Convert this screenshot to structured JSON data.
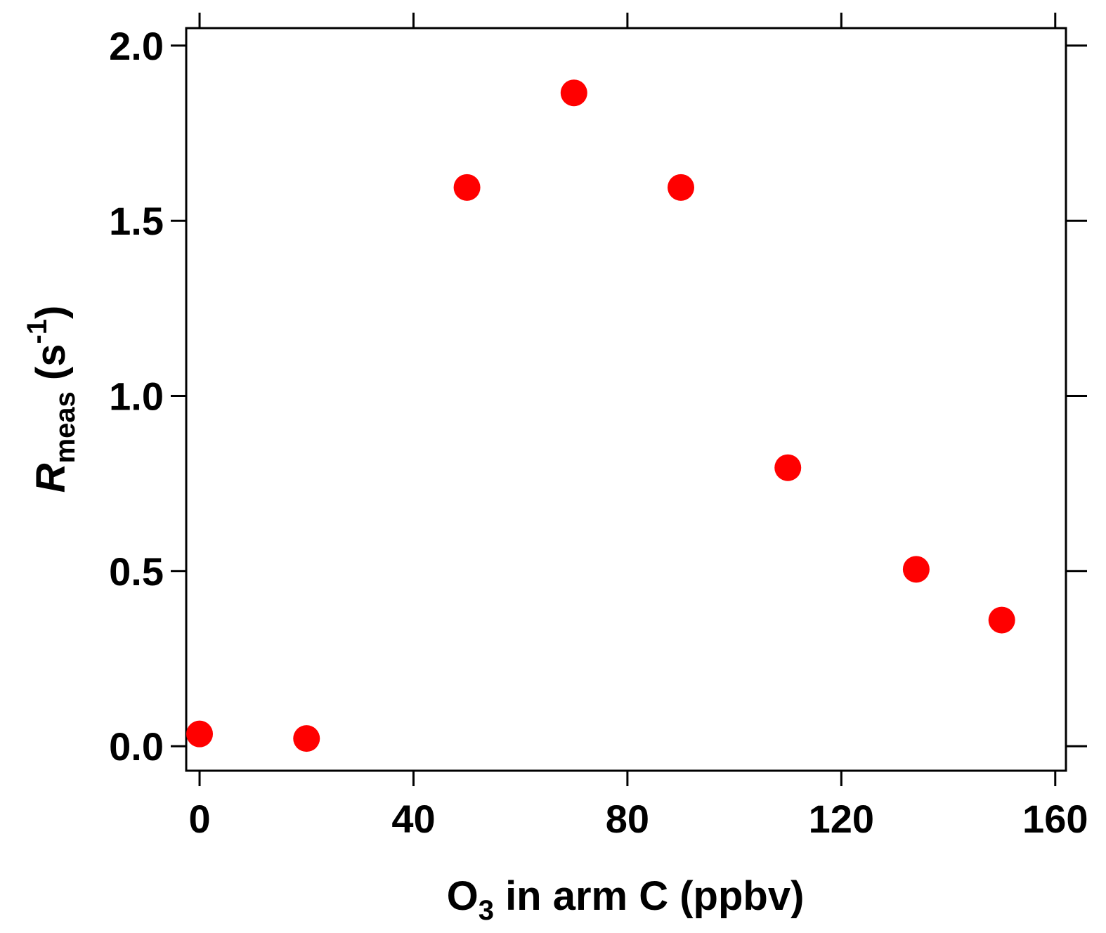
{
  "chart_data": {
    "type": "scatter",
    "title": "",
    "xlabel": {
      "main": "O",
      "subscript": "3",
      "rest": " in arm C (ppbv)"
    },
    "ylabel": {
      "main": "R",
      "subscript": "meas",
      "rest_before_sup": " (s",
      "superscript": "-1",
      "rest_after_sup": ")"
    },
    "xlim": [
      -2.5,
      162
    ],
    "ylim": [
      -0.07,
      2.05
    ],
    "xticks": [
      0,
      40,
      80,
      120,
      160
    ],
    "xtick_labels": [
      "0",
      "40",
      "80",
      "120",
      "160"
    ],
    "yticks": [
      0.0,
      0.5,
      1.0,
      1.5,
      2.0
    ],
    "ytick_labels": [
      "0.0",
      "0.5",
      "1.0",
      "1.5",
      "2.0"
    ],
    "grid": false,
    "mirror_ticks": true,
    "marker_color": "#ff0000",
    "series": [
      {
        "points": [
          {
            "x": 0,
            "y": 0.035
          },
          {
            "x": 20,
            "y": 0.022
          },
          {
            "x": 50,
            "y": 1.595
          },
          {
            "x": 70,
            "y": 1.865
          },
          {
            "x": 90,
            "y": 1.595
          },
          {
            "x": 110,
            "y": 0.795
          },
          {
            "x": 134,
            "y": 0.505
          },
          {
            "x": 150,
            "y": 0.36
          }
        ]
      }
    ]
  }
}
